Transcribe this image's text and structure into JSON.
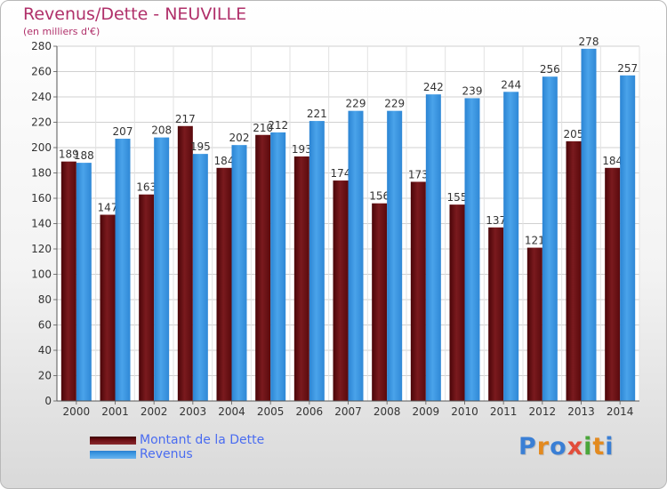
{
  "header": {
    "title": "Revenus/Dette - NEUVILLE",
    "subtitle": "(en milliers d'€)"
  },
  "legend": {
    "items": [
      {
        "label": "Montant de la Dette",
        "color": "#6b0e12"
      },
      {
        "label": "Revenus",
        "color": "#3f9ae3"
      }
    ]
  },
  "logo": {
    "text": "Proxiti",
    "colors": [
      "#3a7fd5",
      "#e38a1f",
      "#3a7fd5",
      "#e24d3a",
      "#4aa63a",
      "#e38a1f",
      "#3a7fd5"
    ]
  },
  "chart_data": {
    "type": "bar",
    "title": "Revenus/Dette - NEUVILLE",
    "subtitle": "(en milliers d'€)",
    "categories": [
      "2000",
      "2001",
      "2002",
      "2003",
      "2004",
      "2005",
      "2006",
      "2007",
      "2008",
      "2009",
      "2010",
      "2011",
      "2012",
      "2013",
      "2014"
    ],
    "series": [
      {
        "name": "Montant de la Dette",
        "color": "#6b0e12",
        "values": [
          189,
          147,
          163,
          217,
          184,
          210,
          193,
          174,
          156,
          173,
          155,
          137,
          121,
          205,
          184
        ]
      },
      {
        "name": "Revenus",
        "color": "#3f9ae3",
        "values": [
          188,
          207,
          208,
          195,
          202,
          212,
          221,
          229,
          229,
          242,
          239,
          244,
          256,
          278,
          257
        ]
      }
    ],
    "ylim": [
      0,
      280
    ],
    "ytick_step": 20,
    "grid": true,
    "legend_position": "bottom-left"
  }
}
